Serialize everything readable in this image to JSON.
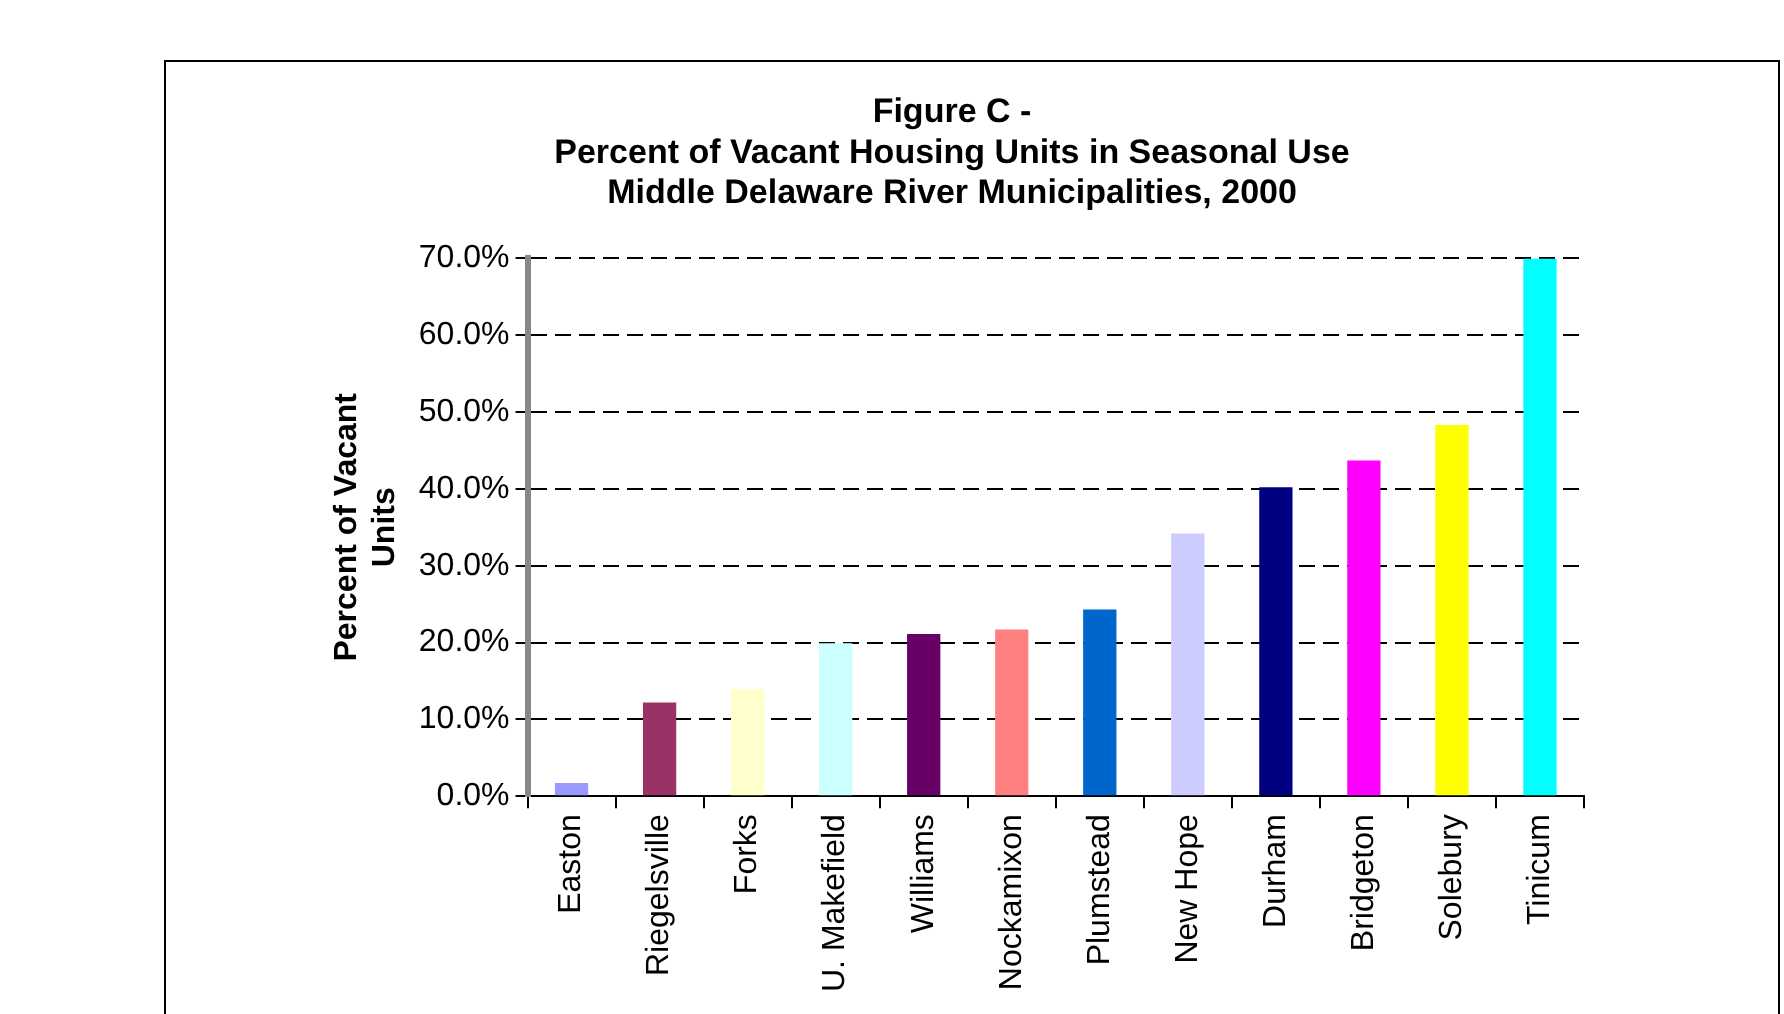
{
  "chart_data": {
    "type": "bar",
    "title": "Figure C -\nPercent of Vacant Housing Units in Seasonal Use\nMiddle Delaware River Municipalities, 2000",
    "ylabel": "Percent of Vacant\nUnits",
    "categories": [
      "Easton",
      "Riegelsville",
      "Forks",
      "U. Makefield",
      "Williams",
      "Nockamixon",
      "Plumstead",
      "New Hope",
      "Durham",
      "Bridgeton",
      "Solebury",
      "Tinicum"
    ],
    "values": [
      1.7,
      12.2,
      13.9,
      19.9,
      21.1,
      21.7,
      24.3,
      34.2,
      40.2,
      43.7,
      48.3,
      70
    ],
    "colors": [
      "#9999ff",
      "#993366",
      "#ffffcc",
      "#ccffff",
      "#660066",
      "#ff8080",
      "#0066cc",
      "#ccccff",
      "#000080",
      "#ff00ff",
      "#ffff00",
      "#00ffff"
    ],
    "ylim": [
      0,
      70
    ],
    "yticks": [
      {
        "value": 0,
        "label": "0.0%"
      },
      {
        "value": 10,
        "label": "10.0%"
      },
      {
        "value": 20,
        "label": "20.0%"
      },
      {
        "value": 30,
        "label": "30.0%"
      },
      {
        "value": 40,
        "label": "40.0%"
      },
      {
        "value": 50,
        "label": "50.0%"
      },
      {
        "value": 60,
        "label": "60.0%"
      },
      {
        "value": 70,
        "label": "70.0%"
      }
    ],
    "grid": "y",
    "legend": false
  }
}
